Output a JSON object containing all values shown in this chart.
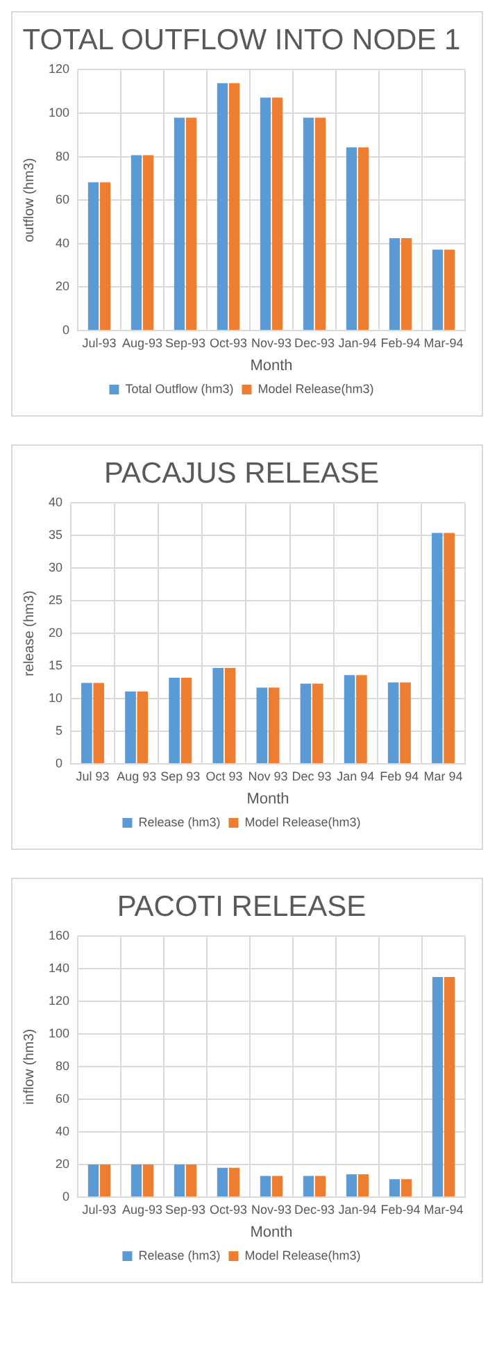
{
  "chart_data": [
    {
      "type": "bar",
      "title": "TOTAL OUTFLOW INTO NODE 1",
      "xlabel": "Month",
      "ylabel": "outflow (hm3)",
      "categories": [
        "Jul-93",
        "Aug-93",
        "Sep-93",
        "Oct-93",
        "Nov-93",
        "Dec-93",
        "Jan-94",
        "Feb-94",
        "Mar-94"
      ],
      "series": [
        {
          "name": "Total Outflow (hm3)",
          "color": "#5b9bd5",
          "values": [
            68.2,
            80.7,
            97.9,
            113.8,
            107.2,
            97.9,
            84.3,
            42.5,
            37.2
          ]
        },
        {
          "name": "Model Release(hm3)",
          "color": "#ed7d31",
          "values": [
            68.2,
            80.7,
            97.9,
            113.8,
            107.2,
            97.9,
            84.3,
            42.5,
            37.2
          ]
        }
      ],
      "ylim": [
        0,
        120
      ],
      "yticks": [
        0,
        20,
        40,
        60,
        80,
        100,
        120
      ],
      "grid": true,
      "legend": "bottom"
    },
    {
      "type": "bar",
      "title": "PACAJUS RELEASE",
      "xlabel": "Month",
      "ylabel": "release (hm3)",
      "categories": [
        "Jul 93",
        "Aug 93",
        "Sep 93",
        "Oct 93",
        "Nov 93",
        "Dec 93",
        "Jan 94",
        "Feb 94",
        "Mar 94"
      ],
      "series": [
        {
          "name": "Release (hm3)",
          "color": "#5b9bd5",
          "values": [
            12.4,
            11.1,
            13.2,
            14.7,
            11.7,
            12.3,
            13.6,
            12.5,
            35.4
          ]
        },
        {
          "name": "Model Release(hm3)",
          "color": "#ed7d31",
          "values": [
            12.4,
            11.1,
            13.2,
            14.7,
            11.7,
            12.3,
            13.6,
            12.5,
            35.4
          ]
        }
      ],
      "ylim": [
        0,
        40
      ],
      "yticks": [
        0,
        5,
        10,
        15,
        20,
        25,
        30,
        35,
        40
      ],
      "grid": true,
      "legend": "bottom"
    },
    {
      "type": "bar",
      "title": "PACOTI RELEASE",
      "xlabel": "Month",
      "ylabel": "inflow (hm3)",
      "categories": [
        "Jul-93",
        "Aug-93",
        "Sep-93",
        "Oct-93",
        "Nov-93",
        "Dec-93",
        "Jan-94",
        "Feb-94",
        "Mar-94"
      ],
      "series": [
        {
          "name": "Release (hm3)",
          "color": "#5b9bd5",
          "values": [
            20,
            20,
            20,
            18,
            13,
            13,
            14,
            11,
            135
          ]
        },
        {
          "name": "Model Release(hm3)",
          "color": "#ed7d31",
          "values": [
            20,
            20,
            20,
            18,
            13,
            13,
            14,
            11,
            135
          ]
        }
      ],
      "ylim": [
        0,
        160
      ],
      "yticks": [
        0,
        20,
        40,
        60,
        80,
        100,
        120,
        140,
        160
      ],
      "grid": true,
      "legend": "bottom"
    }
  ]
}
